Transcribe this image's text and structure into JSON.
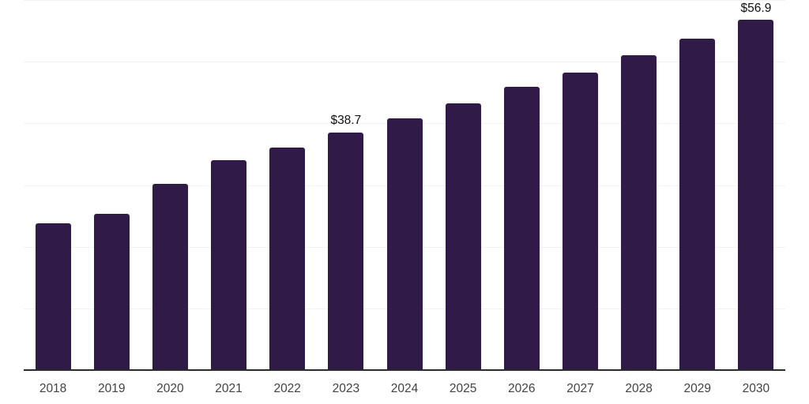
{
  "chart_data": {
    "type": "bar",
    "title": "",
    "xlabel": "",
    "ylabel": "",
    "categories": [
      "2018",
      "2019",
      "2020",
      "2021",
      "2022",
      "2023",
      "2024",
      "2025",
      "2026",
      "2027",
      "2028",
      "2029",
      "2030"
    ],
    "values": [
      23.9,
      25.5,
      30.3,
      34.1,
      36.2,
      38.7,
      40.9,
      43.4,
      46.0,
      48.4,
      51.2,
      53.9,
      56.9
    ],
    "bar_labels": [
      "",
      "",
      "",
      "",
      "",
      "$38.7",
      "",
      "",
      "",
      "",
      "",
      "",
      "$56.9"
    ],
    "ylim": [
      0,
      60
    ],
    "grid": true,
    "gridline_step": 10,
    "y_axis_labels_visible": false,
    "legend": null,
    "colors": {
      "bar": "#301a48",
      "axis_line": "#2b2b2b",
      "gridline": "#f2f2f2",
      "data_label": "#111111",
      "tick_label": "#424242",
      "background": "#ffffff"
    }
  }
}
